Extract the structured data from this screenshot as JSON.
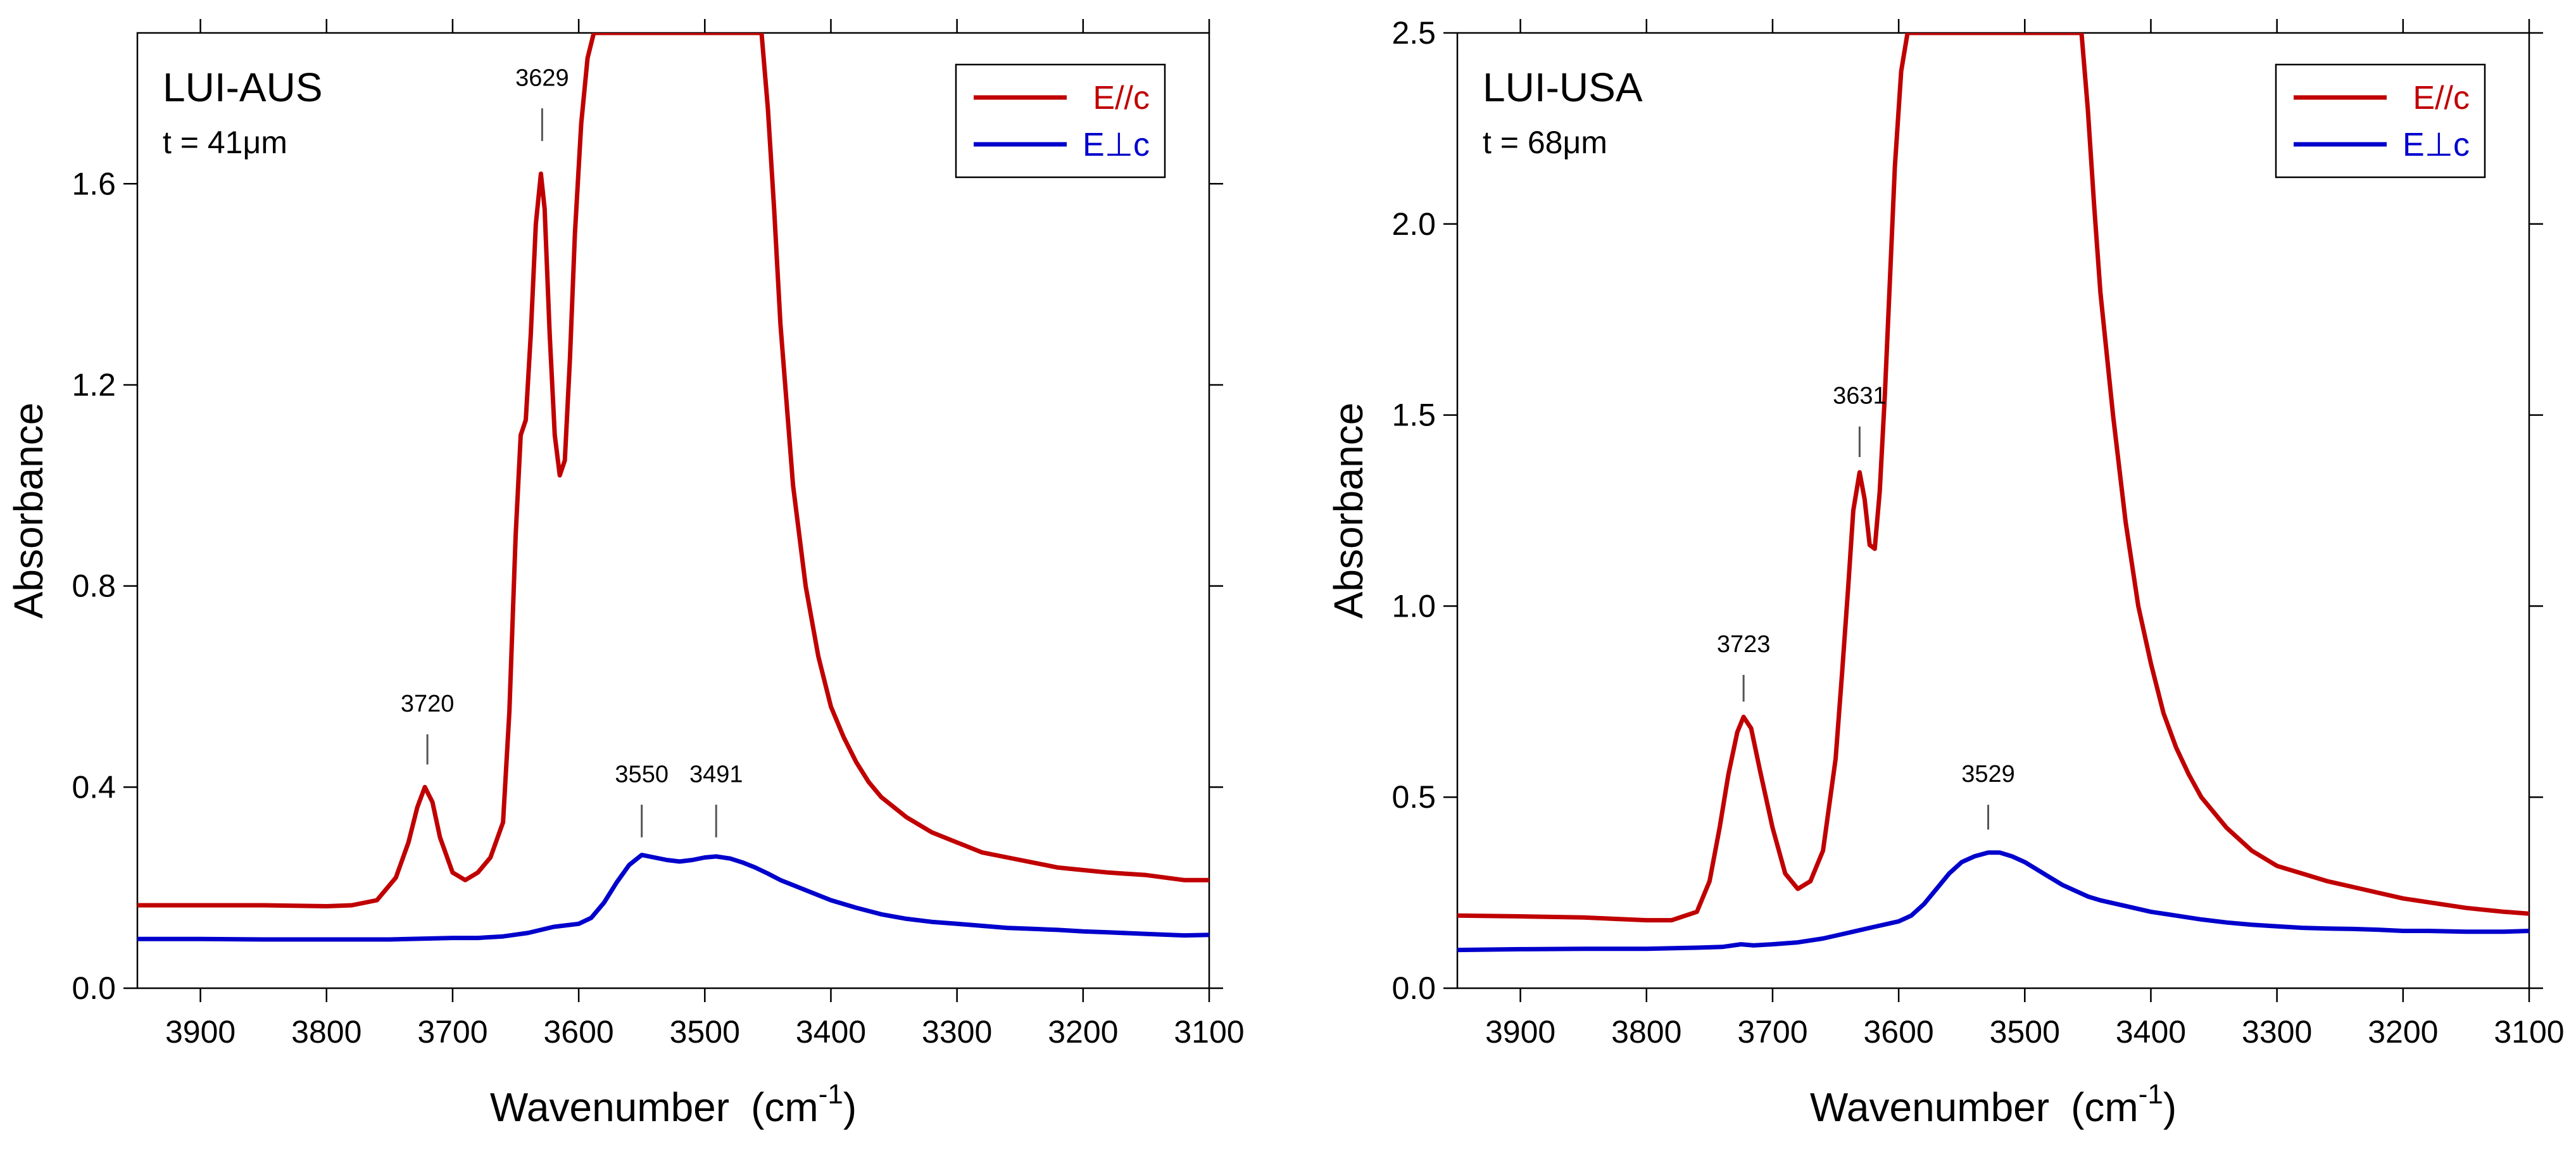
{
  "chart_data": [
    {
      "type": "line",
      "label": "LUI-AUS",
      "thickness": "t = 41μm",
      "xlabel": "Wavenumber",
      "xunit": "(cm",
      "xunit_sup": "-1",
      "xunit_close": ")",
      "ylabel": "Absorbance",
      "xlim": [
        3950,
        3100
      ],
      "ylim": [
        0,
        1.9
      ],
      "xticks": [
        3900,
        3800,
        3700,
        3600,
        3500,
        3400,
        3300,
        3200,
        3100
      ],
      "yticks": [
        0.0,
        0.4,
        0.8,
        1.2,
        1.6
      ],
      "ytick_labels": [
        "0.0",
        "0.4",
        "0.8",
        "1.2",
        "1.6"
      ],
      "legend_placement": "top-right",
      "series": [
        {
          "name": "E//c",
          "color": "#c00000",
          "x": [
            3950,
            3900,
            3850,
            3800,
            3780,
            3760,
            3745,
            3735,
            3728,
            3722,
            3716,
            3710,
            3700,
            3690,
            3680,
            3670,
            3660,
            3655,
            3650,
            3646,
            3642,
            3638,
            3634,
            3630,
            3627,
            3623,
            3619,
            3615,
            3611,
            3607,
            3603,
            3598,
            3593,
            3588,
            3585,
            3455,
            3450,
            3445,
            3440,
            3430,
            3420,
            3410,
            3400,
            3390,
            3380,
            3370,
            3360,
            3340,
            3320,
            3300,
            3280,
            3260,
            3240,
            3220,
            3200,
            3180,
            3150,
            3120,
            3100
          ],
          "y": [
            0.165,
            0.165,
            0.165,
            0.163,
            0.165,
            0.175,
            0.22,
            0.29,
            0.36,
            0.4,
            0.37,
            0.3,
            0.23,
            0.215,
            0.23,
            0.26,
            0.33,
            0.55,
            0.9,
            1.1,
            1.13,
            1.3,
            1.52,
            1.62,
            1.55,
            1.3,
            1.1,
            1.02,
            1.05,
            1.25,
            1.5,
            1.72,
            1.85,
            1.9,
            1.9,
            1.9,
            1.75,
            1.55,
            1.32,
            1.0,
            0.8,
            0.66,
            0.56,
            0.5,
            0.45,
            0.41,
            0.38,
            0.34,
            0.31,
            0.29,
            0.27,
            0.26,
            0.25,
            0.24,
            0.235,
            0.23,
            0.225,
            0.215,
            0.215
          ]
        },
        {
          "name": "E⊥c",
          "color": "#0000cc",
          "x": [
            3950,
            3900,
            3850,
            3800,
            3750,
            3700,
            3680,
            3660,
            3640,
            3620,
            3600,
            3590,
            3580,
            3570,
            3560,
            3550,
            3540,
            3530,
            3520,
            3510,
            3500,
            3491,
            3480,
            3470,
            3460,
            3450,
            3440,
            3420,
            3400,
            3380,
            3360,
            3340,
            3320,
            3300,
            3280,
            3260,
            3240,
            3220,
            3200,
            3180,
            3150,
            3120,
            3100
          ],
          "y": [
            0.098,
            0.098,
            0.097,
            0.097,
            0.097,
            0.1,
            0.1,
            0.103,
            0.11,
            0.122,
            0.128,
            0.14,
            0.17,
            0.21,
            0.245,
            0.265,
            0.26,
            0.255,
            0.252,
            0.255,
            0.26,
            0.262,
            0.258,
            0.25,
            0.24,
            0.228,
            0.215,
            0.195,
            0.175,
            0.16,
            0.147,
            0.138,
            0.132,
            0.128,
            0.124,
            0.12,
            0.118,
            0.116,
            0.113,
            0.111,
            0.108,
            0.105,
            0.106
          ]
        }
      ],
      "annotations": [
        {
          "text": "3720",
          "x": 3720,
          "y_line": [
            0.445,
            0.505
          ],
          "y_text": 0.55
        },
        {
          "text": "3629",
          "x": 3629,
          "y_line": [
            1.685,
            1.75
          ],
          "y_text": 1.795
        },
        {
          "text": "3550",
          "x": 3550,
          "y_line": [
            0.3,
            0.365
          ],
          "y_text": 0.41
        },
        {
          "text": "3491",
          "x": 3491,
          "y_line": [
            0.3,
            0.365
          ],
          "y_text": 0.41
        }
      ]
    },
    {
      "type": "line",
      "label": "LUI-USA",
      "thickness": "t = 68μm",
      "xlabel": "Wavenumber",
      "xunit": "(cm",
      "xunit_sup": "-1",
      "xunit_close": ")",
      "ylabel": "Absorbance",
      "xlim": [
        3950,
        3100
      ],
      "ylim": [
        0,
        2.5
      ],
      "xticks": [
        3900,
        3800,
        3700,
        3600,
        3500,
        3400,
        3300,
        3200,
        3100
      ],
      "yticks": [
        0.0,
        0.5,
        1.0,
        1.5,
        2.0,
        2.5
      ],
      "ytick_labels": [
        "0.0",
        "0.5",
        "1.0",
        "1.5",
        "2.0",
        "2.5"
      ],
      "legend_placement": "top-right",
      "series": [
        {
          "name": "E//c",
          "color": "#c00000",
          "x": [
            3950,
            3900,
            3850,
            3800,
            3780,
            3760,
            3750,
            3742,
            3735,
            3728,
            3723,
            3717,
            3710,
            3700,
            3690,
            3680,
            3670,
            3660,
            3650,
            3645,
            3640,
            3636,
            3631,
            3627,
            3623,
            3619,
            3615,
            3611,
            3607,
            3603,
            3598,
            3593,
            3455,
            3450,
            3445,
            3440,
            3430,
            3420,
            3410,
            3400,
            3390,
            3380,
            3370,
            3360,
            3340,
            3320,
            3300,
            3280,
            3260,
            3240,
            3220,
            3200,
            3180,
            3150,
            3120,
            3100
          ],
          "y": [
            0.19,
            0.188,
            0.185,
            0.178,
            0.178,
            0.2,
            0.28,
            0.42,
            0.56,
            0.67,
            0.71,
            0.68,
            0.57,
            0.42,
            0.3,
            0.26,
            0.28,
            0.36,
            0.6,
            0.82,
            1.05,
            1.25,
            1.35,
            1.28,
            1.16,
            1.15,
            1.3,
            1.55,
            1.85,
            2.15,
            2.4,
            2.5,
            2.5,
            2.3,
            2.05,
            1.82,
            1.5,
            1.22,
            1.0,
            0.85,
            0.72,
            0.63,
            0.56,
            0.5,
            0.42,
            0.36,
            0.32,
            0.3,
            0.28,
            0.265,
            0.25,
            0.235,
            0.225,
            0.21,
            0.2,
            0.195
          ]
        },
        {
          "name": "E⊥c",
          "color": "#0000cc",
          "x": [
            3950,
            3900,
            3850,
            3800,
            3760,
            3740,
            3725,
            3715,
            3700,
            3680,
            3660,
            3640,
            3620,
            3600,
            3590,
            3580,
            3570,
            3560,
            3550,
            3540,
            3529,
            3520,
            3510,
            3500,
            3490,
            3480,
            3470,
            3460,
            3450,
            3440,
            3420,
            3400,
            3380,
            3360,
            3340,
            3320,
            3300,
            3280,
            3260,
            3240,
            3220,
            3200,
            3180,
            3150,
            3120,
            3100
          ],
          "y": [
            0.1,
            0.102,
            0.103,
            0.103,
            0.106,
            0.108,
            0.115,
            0.112,
            0.115,
            0.12,
            0.13,
            0.145,
            0.16,
            0.175,
            0.19,
            0.22,
            0.26,
            0.3,
            0.33,
            0.345,
            0.355,
            0.355,
            0.345,
            0.33,
            0.31,
            0.29,
            0.27,
            0.255,
            0.24,
            0.23,
            0.215,
            0.2,
            0.19,
            0.18,
            0.172,
            0.166,
            0.162,
            0.158,
            0.156,
            0.155,
            0.153,
            0.15,
            0.15,
            0.148,
            0.148,
            0.15
          ]
        }
      ],
      "annotations": [
        {
          "text": "3723",
          "x": 3723,
          "y_line": [
            0.75,
            0.82
          ],
          "y_text": 0.88
        },
        {
          "text": "3631",
          "x": 3631,
          "y_line": [
            1.39,
            1.47
          ],
          "y_text": 1.53
        },
        {
          "text": "3529",
          "x": 3529,
          "y_line": [
            0.415,
            0.48
          ],
          "y_text": 0.54
        }
      ]
    }
  ]
}
